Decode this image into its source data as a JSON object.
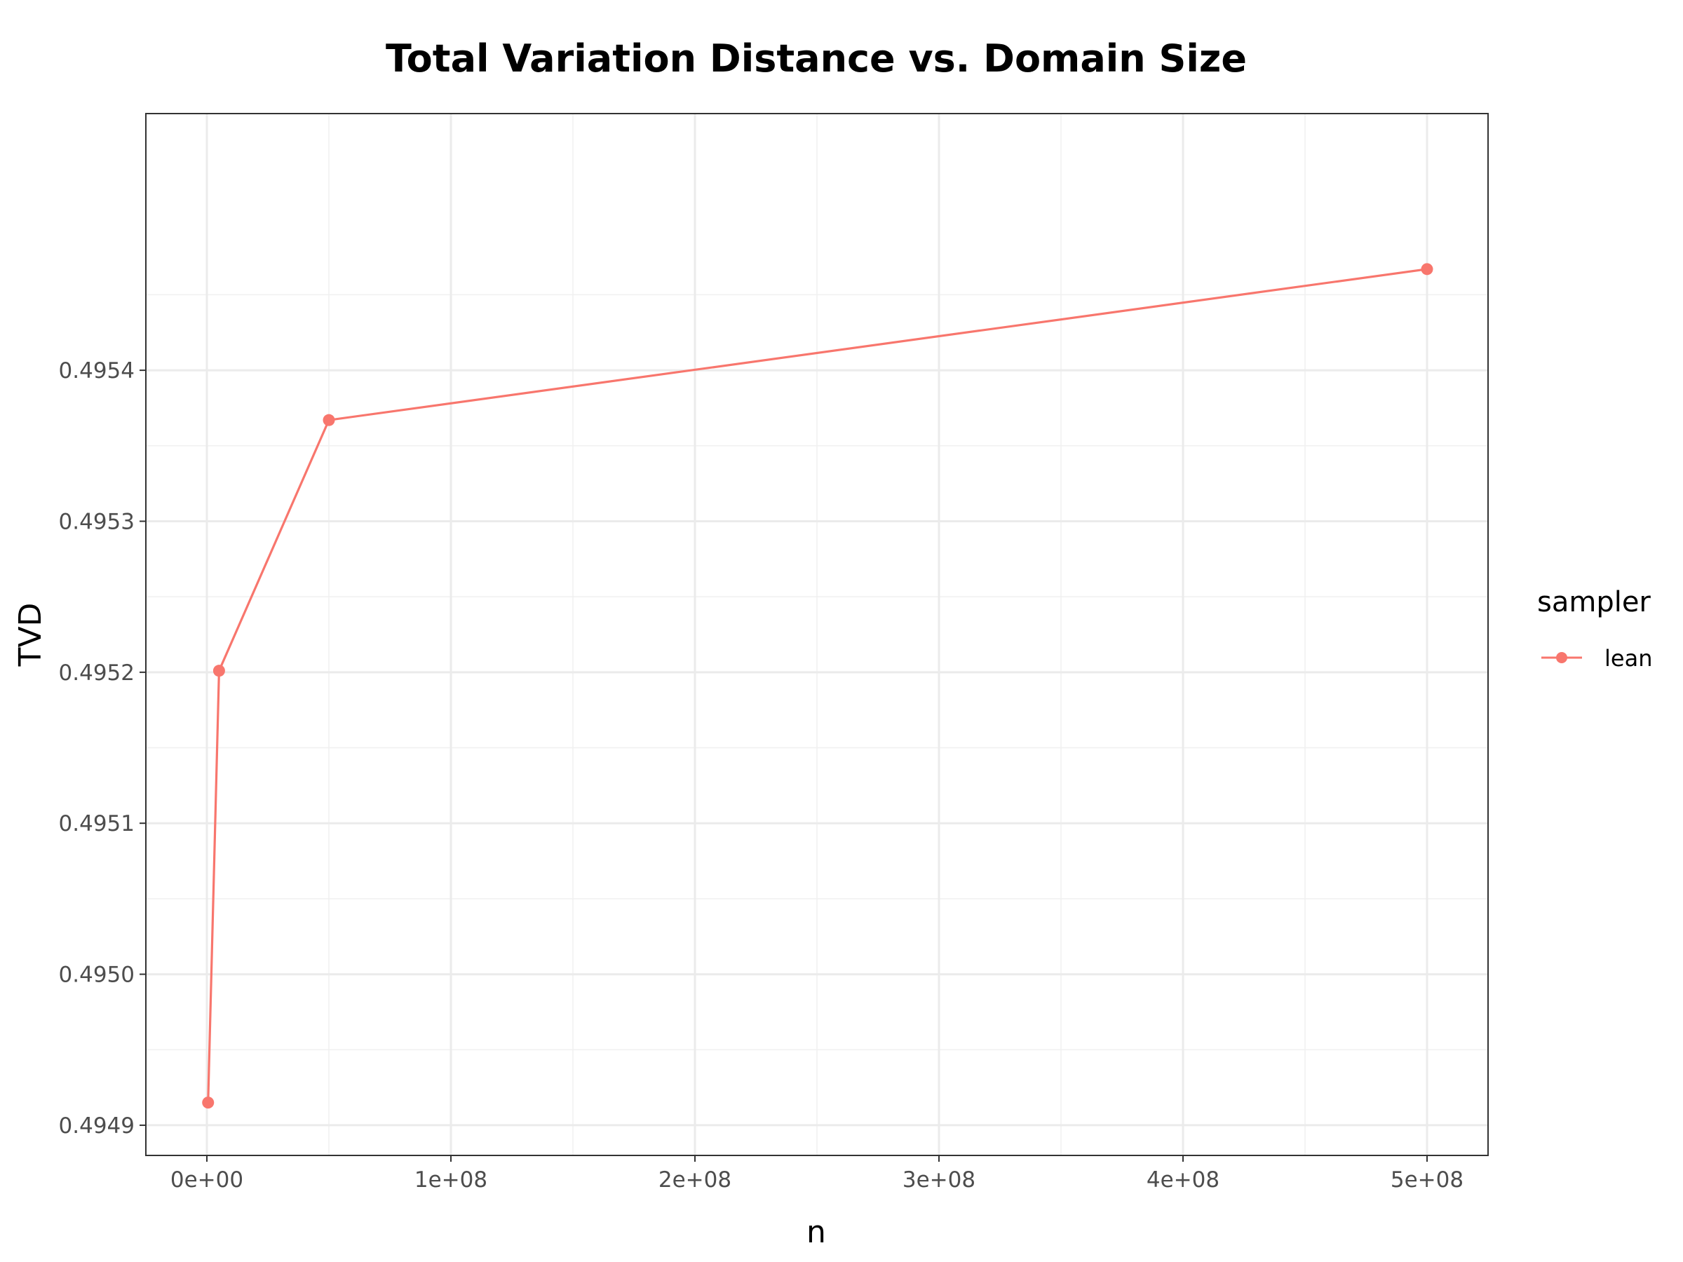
{
  "chart_data": {
    "type": "line",
    "title": "Total Variation Distance vs. Domain Size",
    "xlabel": "n",
    "ylabel": "TVD",
    "xlim": [
      -25000000,
      525000000
    ],
    "ylim": [
      0.49488,
      0.49557
    ],
    "x_ticks": [
      0,
      100000000,
      200000000,
      300000000,
      400000000,
      500000000
    ],
    "x_tick_labels": [
      "0e+00",
      "1e+08",
      "2e+08",
      "3e+08",
      "4e+08",
      "5e+08"
    ],
    "y_ticks": [
      0.4949,
      0.495,
      0.4951,
      0.4952,
      0.4953,
      0.4954
    ],
    "y_tick_labels": [
      "0.4949",
      "0.4950",
      "0.4951",
      "0.4952",
      "0.4953",
      "0.4954"
    ],
    "grid": true,
    "legend": {
      "title": "sampler",
      "position": "right"
    },
    "series": [
      {
        "name": "lean",
        "color": "#F8766D",
        "x": [
          500000,
          5000000,
          50000000,
          500000000
        ],
        "y": [
          0.494915,
          0.495201,
          0.495367,
          0.495467
        ]
      }
    ]
  }
}
